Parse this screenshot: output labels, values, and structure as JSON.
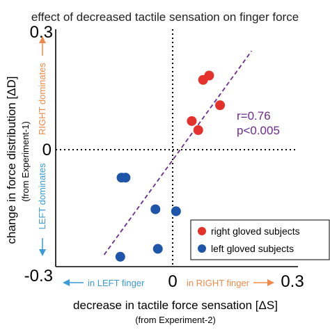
{
  "colors": {
    "right_gloved": "#e5312b",
    "left_gloved": "#1f55a8",
    "regression": "#6b2c8f",
    "annotation": "#6b2c8f",
    "right_arrow": "#f08a4b",
    "left_arrow": "#3b9bd6",
    "axis": "#000000",
    "title": "#222222"
  },
  "chart_data": {
    "type": "scatter",
    "title": "effect of decreased tactile sensation on finger force",
    "xlabel": "decrease in tactile force sensation [ΔS]",
    "xlabel_sub": "(from Experiment-2)",
    "ylabel": "change in force distribution [ΔD]",
    "ylabel_sub": "(from Experiment-1)",
    "xlim": [
      -0.3,
      0.3
    ],
    "ylim": [
      -0.3,
      0.3
    ],
    "x_tick_labels": [
      "0",
      "0.3"
    ],
    "y_tick_labels": [
      "0.3",
      "0",
      "-0.3"
    ],
    "series": [
      {
        "name": "right gloved subjects",
        "color_key": "right_gloved",
        "points": [
          {
            "x": 0.08,
            "y": 0.183
          },
          {
            "x": 0.065,
            "y": 0.172
          },
          {
            "x": 0.107,
            "y": 0.108
          },
          {
            "x": 0.037,
            "y": 0.068
          },
          {
            "x": 0.053,
            "y": 0.045
          }
        ]
      },
      {
        "name": "left gloved subjects",
        "color_key": "left_gloved",
        "points": [
          {
            "x": -0.137,
            "y": -0.075
          },
          {
            "x": -0.127,
            "y": -0.075
          },
          {
            "x": -0.053,
            "y": -0.155
          },
          {
            "x": -0.002,
            "y": -0.16
          },
          {
            "x": -0.047,
            "y": -0.255
          },
          {
            "x": -0.14,
            "y": -0.275
          }
        ]
      }
    ],
    "regression_line": {
      "x1": -0.18,
      "y1": -0.27,
      "x2": 0.185,
      "y2": 0.245
    },
    "stats": {
      "r": "r=0.76",
      "p": "p<0.005"
    },
    "legend_placement": "bottom-right",
    "direction_labels": {
      "right_dominates": "RIGHT dominates",
      "left_dominates": "LEFT dominates",
      "in_left_finger": "in LEFT finger",
      "in_right_finger": "in RIGHT finger"
    }
  }
}
